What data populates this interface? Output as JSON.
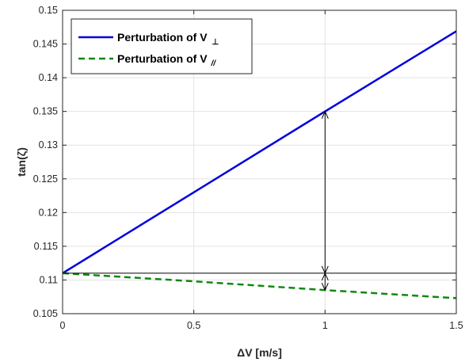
{
  "chart_data": {
    "type": "line",
    "xlabel": "ΔV [m/s]",
    "ylabel": "tan(ζ)",
    "xlim": [
      0,
      1.5
    ],
    "ylim": [
      0.105,
      0.15
    ],
    "xticks": [
      "0",
      "0.5",
      "1",
      "1.5"
    ],
    "yticks": [
      "0.105",
      "0.11",
      "0.115",
      "0.12",
      "0.125",
      "0.13",
      "0.135",
      "0.14",
      "0.145",
      "0.15"
    ],
    "grid": true,
    "legend_position": "top-left",
    "series": [
      {
        "name": "Perturbation of V⊥",
        "legend_main": "Perturbation of V",
        "legend_sub": "⊥",
        "style": "solid",
        "color": "#0000dd",
        "x": [
          0,
          0.5,
          1,
          1.5
        ],
        "y": [
          0.111,
          0.123,
          0.135,
          0.1469
        ]
      },
      {
        "name": "Perturbation of V//",
        "legend_main": "Perturbation of V",
        "legend_sub": "//",
        "style": "dashed",
        "color": "#118811",
        "x": [
          0,
          0.5,
          1,
          1.5
        ],
        "y": [
          0.111,
          0.1098,
          0.1085,
          0.1073
        ]
      }
    ],
    "annotations": {
      "reference_line_y": 0.111,
      "reference_line_color": "#000000",
      "arrow_x": 1,
      "arrow_upper_y": [
        0.111,
        0.135
      ],
      "arrow_lower_y": [
        0.111,
        0.1085
      ]
    }
  }
}
